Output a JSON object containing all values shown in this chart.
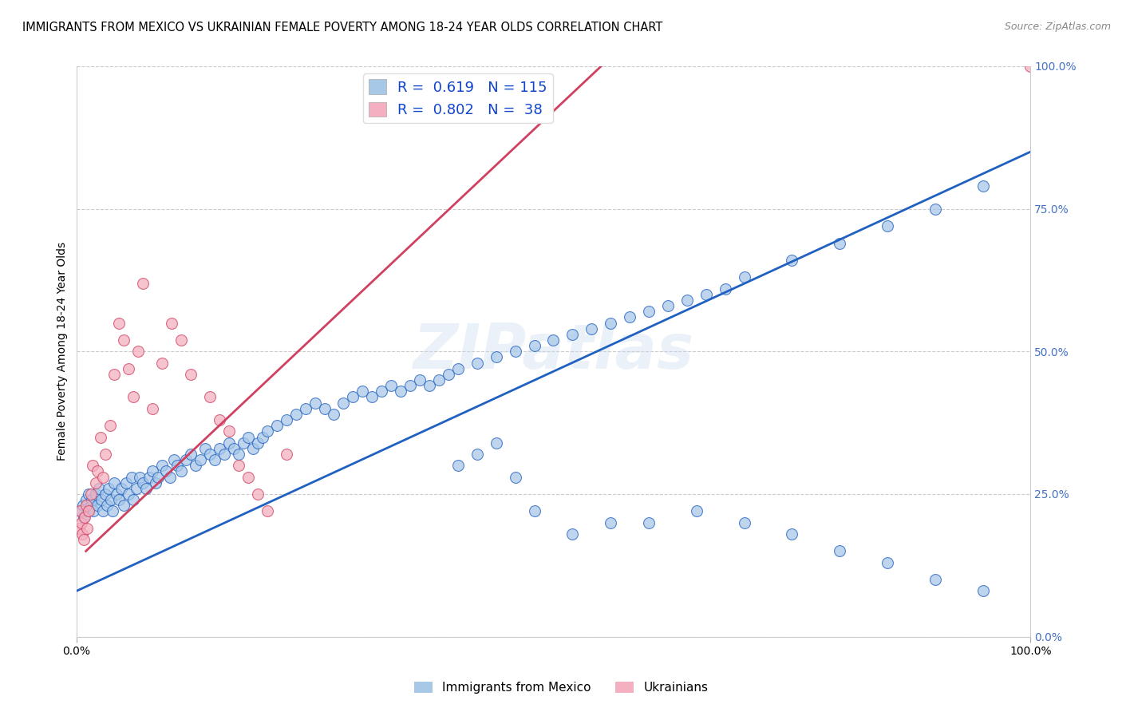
{
  "title": "IMMIGRANTS FROM MEXICO VS UKRAINIAN FEMALE POVERTY AMONG 18-24 YEAR OLDS CORRELATION CHART",
  "source": "Source: ZipAtlas.com",
  "ylabel": "Female Poverty Among 18-24 Year Olds",
  "xlim": [
    0,
    100
  ],
  "ylim": [
    0,
    100
  ],
  "ytick_values": [
    0,
    25,
    50,
    75,
    100
  ],
  "ytick_labels": [
    "0.0%",
    "25.0%",
    "50.0%",
    "75.0%",
    "100.0%"
  ],
  "right_ytick_color": "#4472c4",
  "blue_R": 0.619,
  "blue_N": 115,
  "pink_R": 0.802,
  "pink_N": 38,
  "blue_color": "#a8c8e8",
  "pink_color": "#f4b0c0",
  "blue_line_color": "#2060c0",
  "pink_line_color": "#d04060",
  "legend_label_blue": "Immigrants from Mexico",
  "legend_label_pink": "Ukrainians",
  "watermark": "ZIPatlas",
  "blue_line_y0": 8,
  "blue_line_y1": 85,
  "pink_line_x0": 1,
  "pink_line_x1": 55,
  "pink_line_y0": 15,
  "pink_line_y1": 100,
  "blue_scatter_x": [
    0.5,
    0.7,
    0.8,
    1.0,
    1.2,
    1.3,
    1.5,
    1.6,
    1.8,
    2.0,
    2.2,
    2.4,
    2.6,
    2.8,
    3.0,
    3.2,
    3.4,
    3.6,
    3.8,
    4.0,
    4.2,
    4.5,
    4.7,
    5.0,
    5.2,
    5.5,
    5.8,
    6.0,
    6.3,
    6.6,
    7.0,
    7.3,
    7.6,
    8.0,
    8.3,
    8.6,
    9.0,
    9.4,
    9.8,
    10.2,
    10.6,
    11.0,
    11.5,
    12.0,
    12.5,
    13.0,
    13.5,
    14.0,
    14.5,
    15.0,
    15.5,
    16.0,
    16.5,
    17.0,
    17.5,
    18.0,
    18.5,
    19.0,
    19.5,
    20.0,
    21.0,
    22.0,
    23.0,
    24.0,
    25.0,
    26.0,
    27.0,
    28.0,
    29.0,
    30.0,
    31.0,
    32.0,
    33.0,
    34.0,
    35.0,
    36.0,
    37.0,
    38.0,
    39.0,
    40.0,
    42.0,
    44.0,
    46.0,
    48.0,
    50.0,
    52.0,
    54.0,
    56.0,
    58.0,
    60.0,
    62.0,
    64.0,
    66.0,
    68.0,
    70.0,
    75.0,
    80.0,
    85.0,
    90.0,
    95.0,
    40.0,
    42.0,
    44.0,
    46.0,
    48.0,
    52.0,
    56.0,
    60.0,
    65.0,
    70.0,
    75.0,
    80.0,
    85.0,
    90.0,
    95.0
  ],
  "blue_scatter_y": [
    22.0,
    23.0,
    21.0,
    24.0,
    22.0,
    25.0,
    23.0,
    24.0,
    22.0,
    25.0,
    23.0,
    26.0,
    24.0,
    22.0,
    25.0,
    23.0,
    26.0,
    24.0,
    22.0,
    27.0,
    25.0,
    24.0,
    26.0,
    23.0,
    27.0,
    25.0,
    28.0,
    24.0,
    26.0,
    28.0,
    27.0,
    26.0,
    28.0,
    29.0,
    27.0,
    28.0,
    30.0,
    29.0,
    28.0,
    31.0,
    30.0,
    29.0,
    31.0,
    32.0,
    30.0,
    31.0,
    33.0,
    32.0,
    31.0,
    33.0,
    32.0,
    34.0,
    33.0,
    32.0,
    34.0,
    35.0,
    33.0,
    34.0,
    35.0,
    36.0,
    37.0,
    38.0,
    39.0,
    40.0,
    41.0,
    40.0,
    39.0,
    41.0,
    42.0,
    43.0,
    42.0,
    43.0,
    44.0,
    43.0,
    44.0,
    45.0,
    44.0,
    45.0,
    46.0,
    47.0,
    48.0,
    49.0,
    50.0,
    51.0,
    52.0,
    53.0,
    54.0,
    55.0,
    56.0,
    57.0,
    58.0,
    59.0,
    60.0,
    61.0,
    63.0,
    66.0,
    69.0,
    72.0,
    75.0,
    79.0,
    30.0,
    32.0,
    34.0,
    28.0,
    22.0,
    18.0,
    20.0,
    20.0,
    22.0,
    20.0,
    18.0,
    15.0,
    13.0,
    10.0,
    8.0
  ],
  "pink_scatter_x": [
    0.3,
    0.4,
    0.5,
    0.6,
    0.8,
    0.9,
    1.0,
    1.1,
    1.3,
    1.5,
    1.7,
    2.0,
    2.2,
    2.5,
    2.8,
    3.0,
    3.5,
    4.0,
    4.5,
    5.0,
    5.5,
    6.0,
    6.5,
    7.0,
    8.0,
    9.0,
    10.0,
    11.0,
    12.0,
    14.0,
    15.0,
    16.0,
    17.0,
    18.0,
    19.0,
    20.0,
    22.0,
    100.0
  ],
  "pink_scatter_y": [
    19.0,
    22.0,
    20.0,
    18.0,
    17.0,
    21.0,
    23.0,
    19.0,
    22.0,
    25.0,
    30.0,
    27.0,
    29.0,
    35.0,
    28.0,
    32.0,
    37.0,
    46.0,
    55.0,
    52.0,
    47.0,
    42.0,
    50.0,
    62.0,
    40.0,
    48.0,
    55.0,
    52.0,
    46.0,
    42.0,
    38.0,
    36.0,
    30.0,
    28.0,
    25.0,
    22.0,
    32.0,
    100.0
  ]
}
